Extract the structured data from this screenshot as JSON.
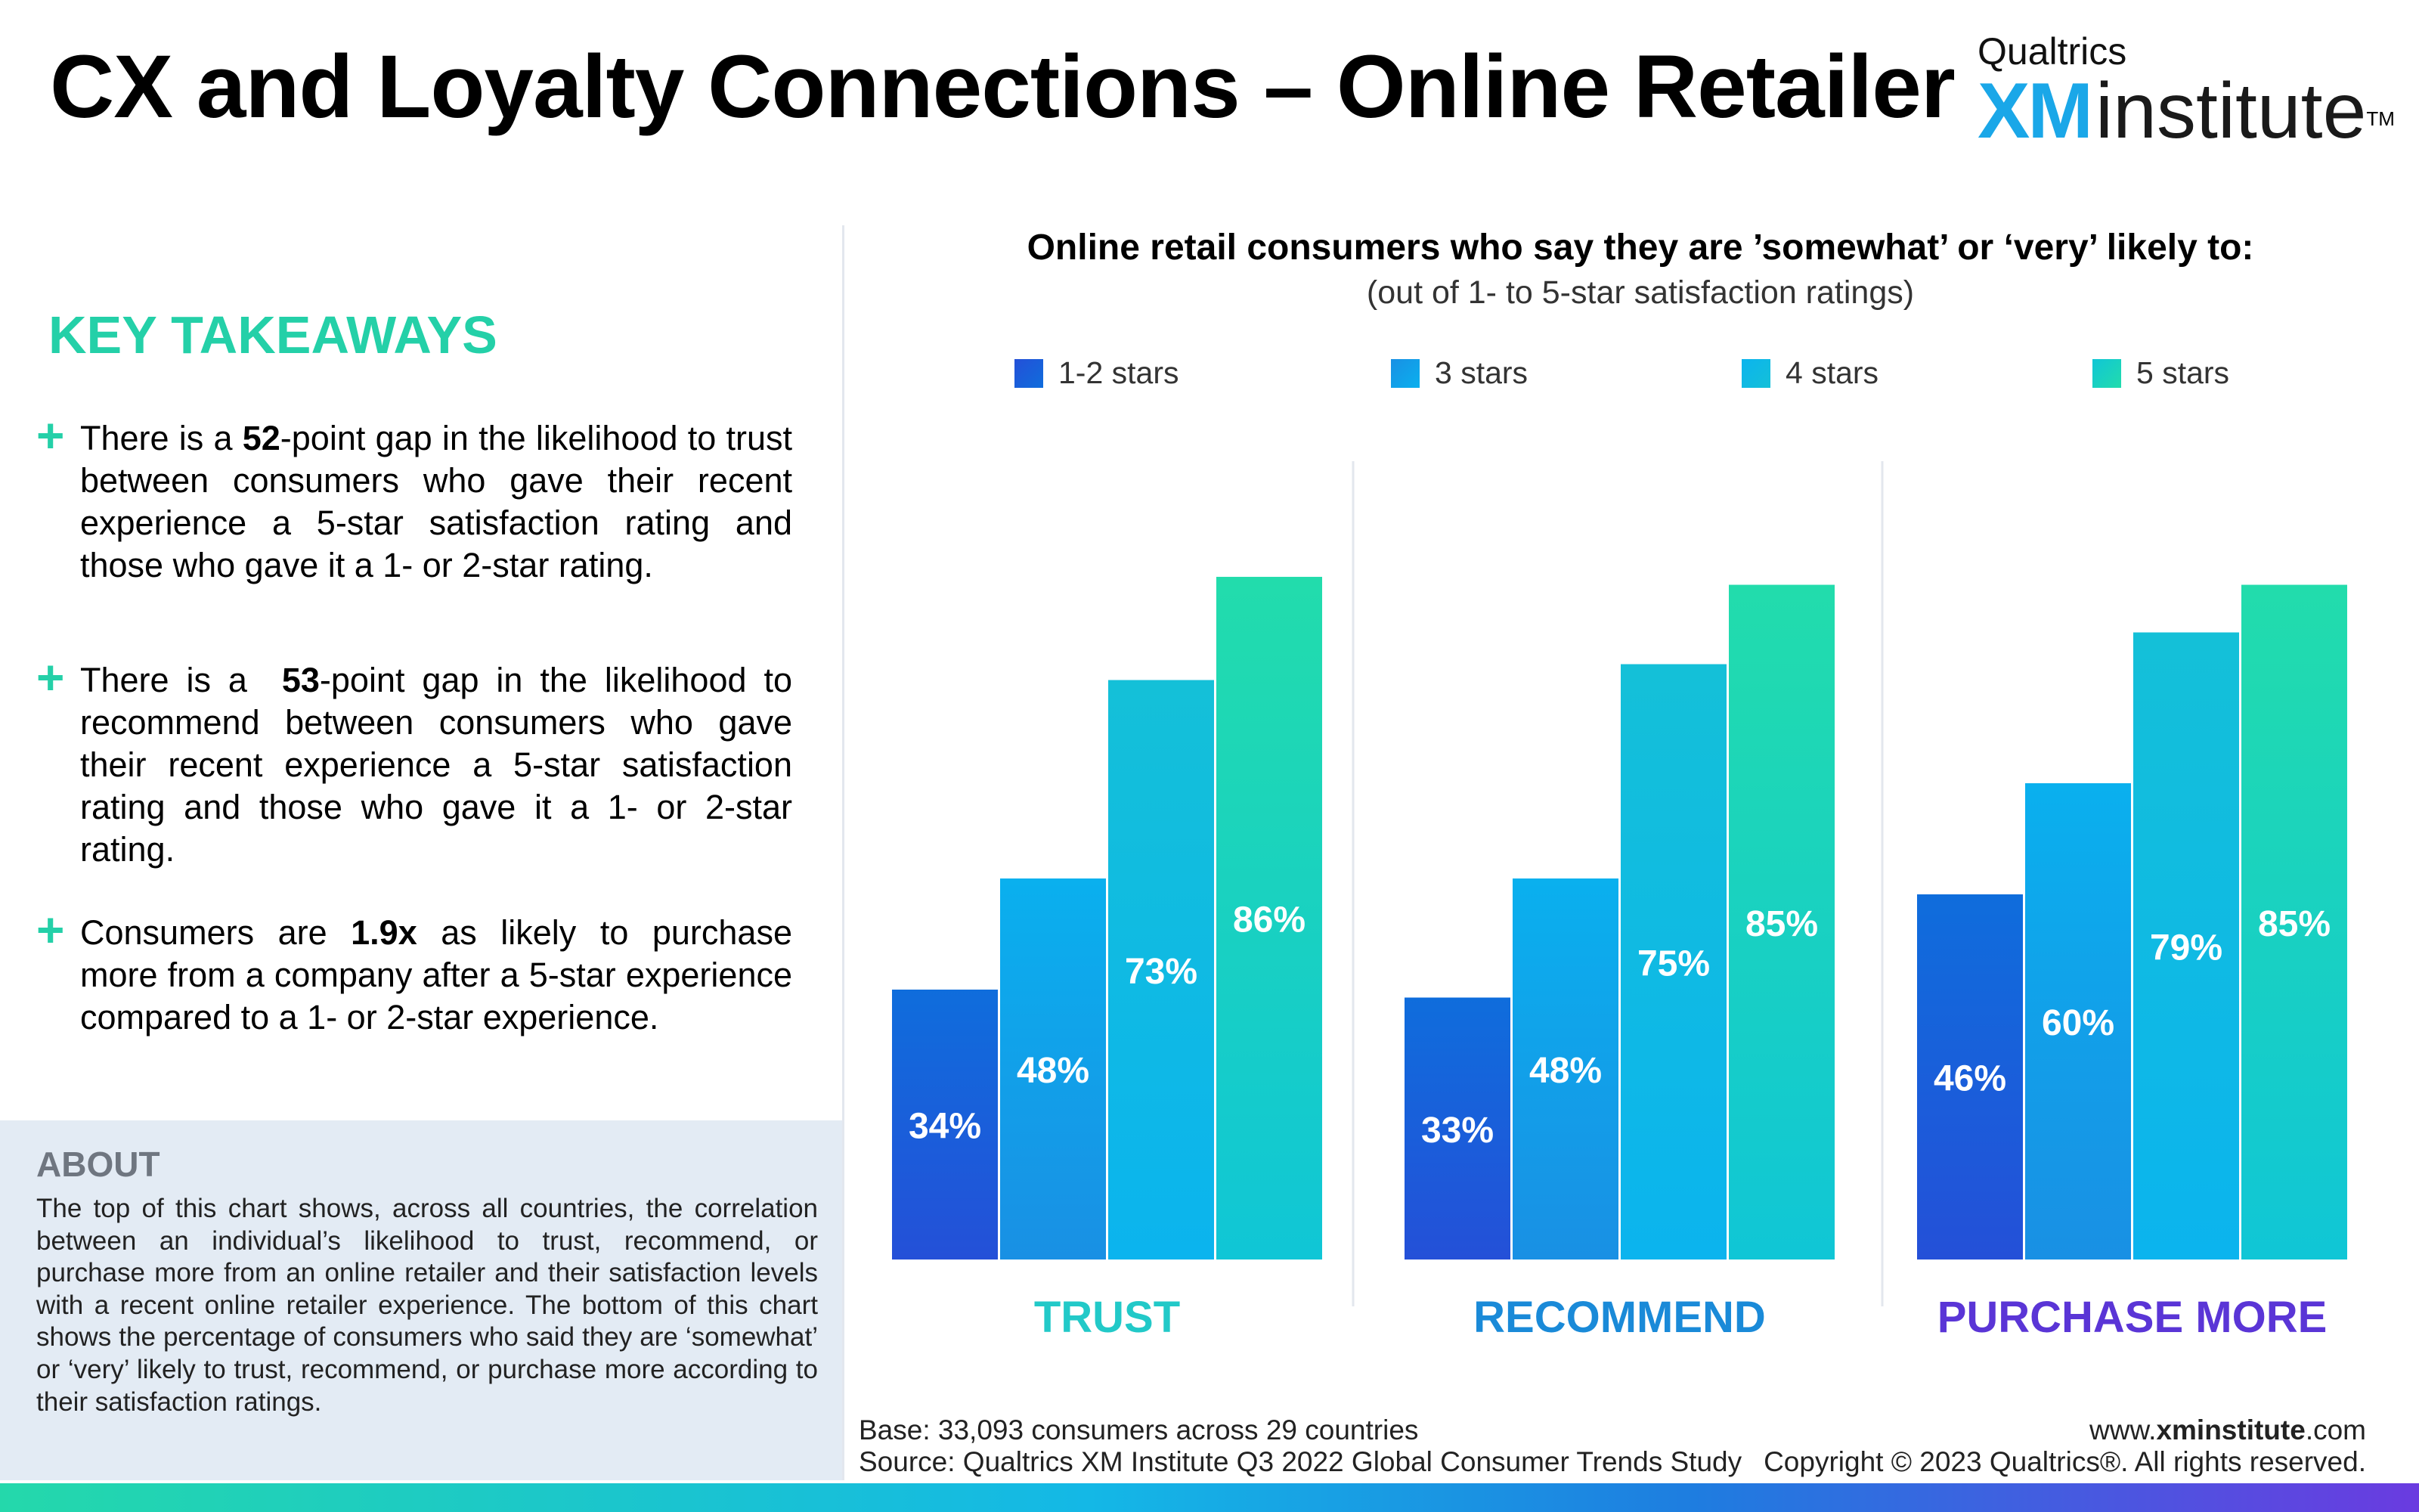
{
  "header": {
    "title": "CX and Loyalty Connections – Online Retailer"
  },
  "brand": {
    "company": "Qualtrics",
    "xm": "XM",
    "institute": "institute",
    "tm": "TM"
  },
  "takeaways": {
    "heading": "KEY TAKEAWAYS",
    "items": [
      {
        "before": "There is a ",
        "bold": "52",
        "after": "-point gap in the likelihood to trust between consumers who gave their recent experience a 5-star satisfaction rating and those who gave it a 1- or 2-star rating."
      },
      {
        "before": "There is a  ",
        "bold": "53",
        "after": "-point gap in the likelihood to recommend between consumers who gave their recent experience a 5-star satisfaction rating and those who gave it a 1- or 2-star rating."
      },
      {
        "before": "Consumers are ",
        "bold": "1.9x",
        "after": " as likely to purchase more from a company after a 5-star experience compared to a 1- or 2-star experience."
      }
    ]
  },
  "about": {
    "heading": "ABOUT",
    "text": "The top of this chart shows, across all countries, the correlation between an individual’s likelihood to trust, recommend, or purchase more from an online retailer and their satisfaction levels with a recent online retailer experience. The bottom of this chart shows the percentage of consumers who said they are ‘somewhat’ or ‘very’ likely to trust, recommend, or purchase more according to their satisfaction ratings."
  },
  "chart_data": {
    "type": "bar",
    "title": "Online retail consumers who say they are ’somewhat’ or ‘very’ likely to:",
    "subtitle": "(out of 1- to 5-star satisfaction ratings)",
    "categories": [
      "TRUST",
      "RECOMMEND",
      "PURCHASE MORE"
    ],
    "category_colors": [
      "#22c9c8",
      "#1a8ad8",
      "#5a35d6"
    ],
    "series": [
      {
        "name": "1-2 stars",
        "values": [
          34,
          33,
          46
        ],
        "color_top": "#0f6ddc",
        "color_bottom": "#2450d8"
      },
      {
        "name": "3 stars",
        "values": [
          48,
          48,
          60
        ],
        "color_top": "#0ab0ee",
        "color_bottom": "#1990e4"
      },
      {
        "name": "4 stars",
        "values": [
          73,
          75,
          79
        ],
        "color_top": "#14c0d8",
        "color_bottom": "#0bb4ee"
      },
      {
        "name": "5 stars",
        "values": [
          86,
          85,
          85
        ],
        "color_top": "#22dcac",
        "color_bottom": "#10c6d6"
      }
    ],
    "value_suffix": "%",
    "ylim": [
      0,
      100
    ],
    "legend_position": "top",
    "grid": false
  },
  "footer": {
    "base": "Base: 33,093 consumers across 29 countries",
    "source": "Source: Qualtrics XM Institute Q3 2022 Global Consumer Trends Study",
    "website_prefix": "www.",
    "website_bold": "xminstitute",
    "website_suffix": ".com",
    "copyright": "Copyright © 2023 Qualtrics®. All rights reserved."
  }
}
